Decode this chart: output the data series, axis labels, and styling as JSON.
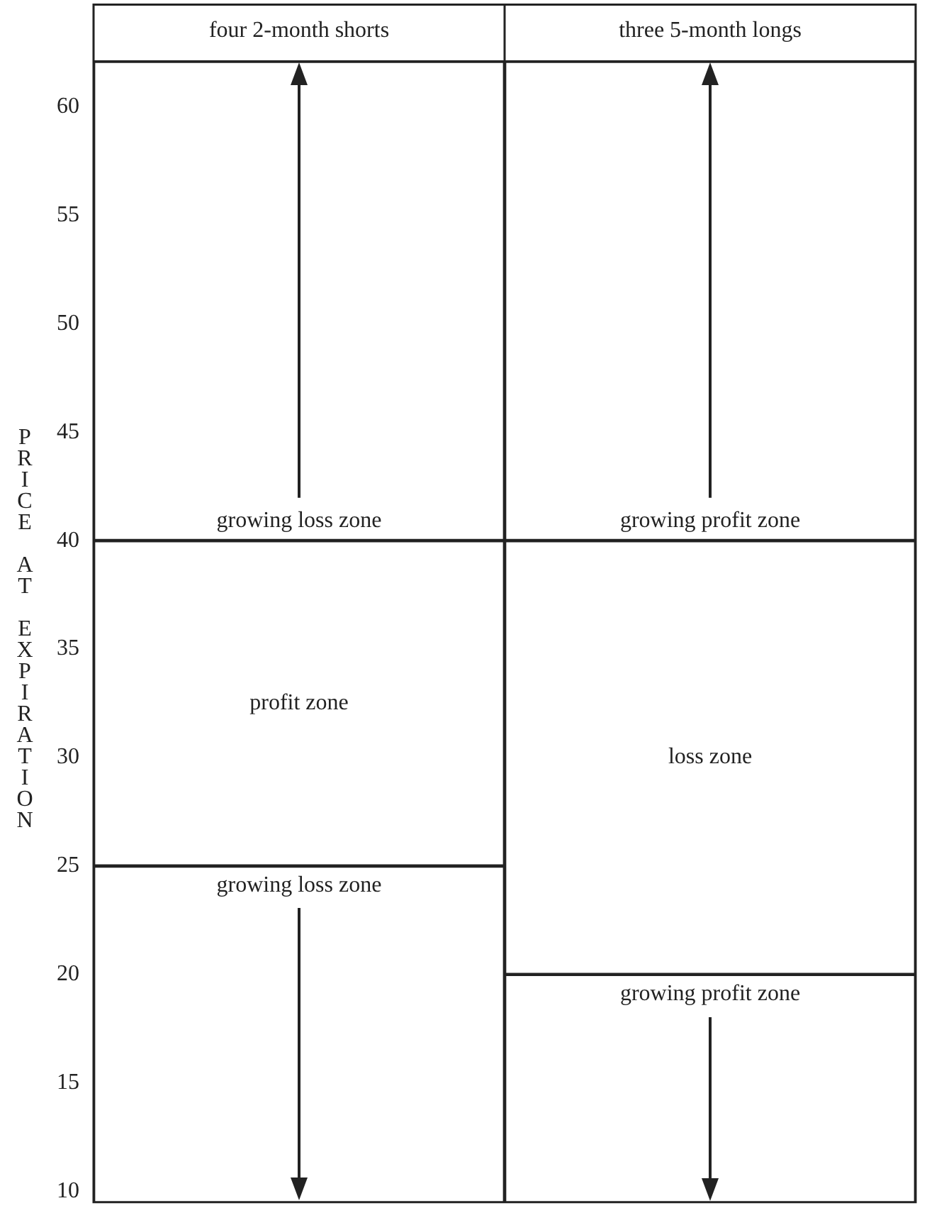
{
  "chart_data": {
    "type": "bar",
    "stacked": true,
    "ylabel": "PRICE AT EXPIRATION",
    "categories": [
      "four 2-month shorts",
      "three 5-month longs"
    ],
    "series": [
      {
        "color": "#ffffff",
        "values": [
          25,
          20
        ],
        "value_labels": [
          "growing loss zone",
          "growing profit zone"
        ]
      },
      {
        "color": "#ffffff",
        "values": [
          15,
          20
        ],
        "value_labels": [
          "profit zone",
          "loss zone"
        ]
      },
      {
        "color": "#ffffff",
        "values": [
          22.1,
          22.1
        ],
        "value_labels": [
          "growing loss zone",
          "growing profit zone"
        ]
      }
    ],
    "ylim": [
      9.5,
      62.1
    ],
    "yticks": [
      10,
      15,
      20,
      25,
      30,
      35,
      40,
      45,
      50,
      55,
      60
    ],
    "legend": false
  }
}
